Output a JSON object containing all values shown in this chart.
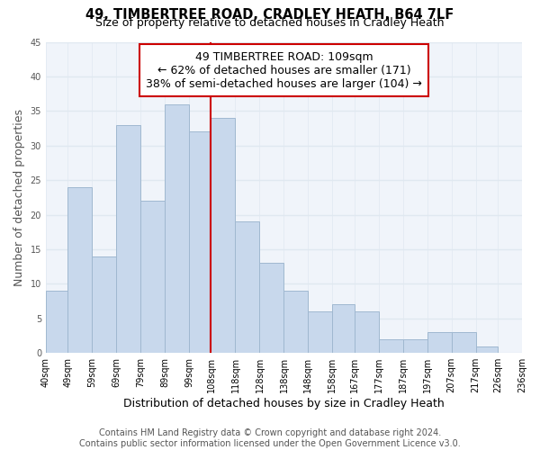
{
  "title": "49, TIMBERTREE ROAD, CRADLEY HEATH, B64 7LF",
  "subtitle": "Size of property relative to detached houses in Cradley Heath",
  "xlabel": "Distribution of detached houses by size in Cradley Heath",
  "ylabel": "Number of detached properties",
  "bar_color": "#c8d8ec",
  "bar_edge_color": "#a0b8d0",
  "bin_edges": [
    40,
    49,
    59,
    69,
    79,
    89,
    99,
    108,
    118,
    128,
    138,
    148,
    158,
    167,
    177,
    187,
    197,
    207,
    217,
    226,
    236
  ],
  "bar_heights": [
    9,
    24,
    14,
    33,
    22,
    36,
    32,
    34,
    19,
    13,
    9,
    6,
    7,
    6,
    2,
    2,
    3,
    3,
    1,
    0
  ],
  "tick_labels": [
    "40sqm",
    "49sqm",
    "59sqm",
    "69sqm",
    "79sqm",
    "89sqm",
    "99sqm",
    "108sqm",
    "118sqm",
    "128sqm",
    "138sqm",
    "148sqm",
    "158sqm",
    "167sqm",
    "177sqm",
    "187sqm",
    "197sqm",
    "207sqm",
    "217sqm",
    "226sqm",
    "236sqm"
  ],
  "vline_x": 108,
  "vline_color": "#cc0000",
  "annotation_line1": "49 TIMBERTREE ROAD: 109sqm",
  "annotation_line2": "← 62% of detached houses are smaller (171)",
  "annotation_line3": "38% of semi-detached houses are larger (104) →",
  "ylim": [
    0,
    45
  ],
  "yticks": [
    0,
    5,
    10,
    15,
    20,
    25,
    30,
    35,
    40,
    45
  ],
  "footer_text": "Contains HM Land Registry data © Crown copyright and database right 2024.\nContains public sector information licensed under the Open Government Licence v3.0.",
  "background_color": "#ffffff",
  "plot_bg_color": "#f0f4fa",
  "grid_color": "#e0e8f0",
  "title_fontsize": 10.5,
  "subtitle_fontsize": 9,
  "axis_label_fontsize": 9,
  "tick_fontsize": 7,
  "annotation_fontsize": 9,
  "footer_fontsize": 7
}
